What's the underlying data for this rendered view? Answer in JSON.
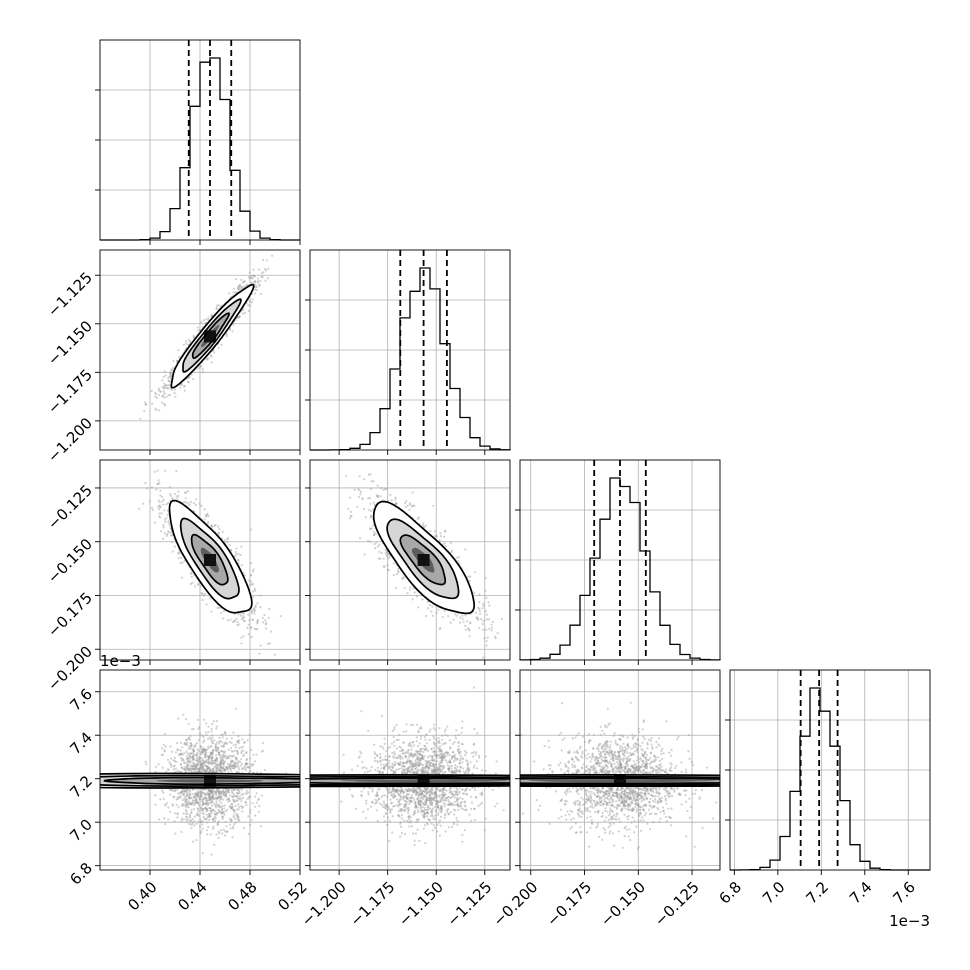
{
  "chart_data": {
    "type": "corner",
    "grid": true,
    "params": [
      {
        "index": 0,
        "range": [
          0.36,
          0.52
        ],
        "ticks": [
          0.4,
          0.44,
          0.48,
          0.52
        ],
        "tick_labels": [
          "0.40",
          "0.44",
          "0.48",
          "0.52"
        ],
        "offset_label": "",
        "quantiles": [
          0.431,
          0.448,
          0.465
        ],
        "mean": 0.448,
        "sd": 0.0145
      },
      {
        "index": 1,
        "range": [
          -1.215,
          -1.112
        ],
        "ticks": [
          -1.2,
          -1.175,
          -1.15,
          -1.125
        ],
        "tick_labels": [
          "−1.200",
          "−1.175",
          "−1.150",
          "−1.125"
        ],
        "offset_label": "",
        "quantiles": [
          -1.1685,
          -1.1565,
          -1.1445
        ],
        "mean": -1.1565,
        "sd": 0.0115
      },
      {
        "index": 2,
        "range": [
          -0.205,
          -0.112
        ],
        "ticks": [
          -0.2,
          -0.175,
          -0.15,
          -0.125
        ],
        "tick_labels": [
          "−0.200",
          "−0.175",
          "−0.150",
          "−0.125"
        ],
        "offset_label": "",
        "quantiles": [
          -0.1705,
          -0.1585,
          -0.1465
        ],
        "mean": -0.1585,
        "sd": 0.0115
      },
      {
        "index": 3,
        "range": [
          6.78,
          7.7
        ],
        "ticks": [
          6.8,
          7.0,
          7.2,
          7.4,
          7.6
        ],
        "tick_labels": [
          "6.8",
          "7.0",
          "7.2",
          "7.4",
          "7.6"
        ],
        "offset_label": "1e−3",
        "quantiles": [
          7.105,
          7.19,
          7.275
        ],
        "mean": 7.19,
        "sd": 0.085
      }
    ],
    "correlations": [
      [
        1,
        0.95,
        -0.8,
        0
      ],
      [
        0.95,
        1,
        -0.8,
        0
      ],
      [
        -0.8,
        -0.8,
        1,
        0
      ],
      [
        0,
        0,
        0,
        1
      ]
    ]
  }
}
